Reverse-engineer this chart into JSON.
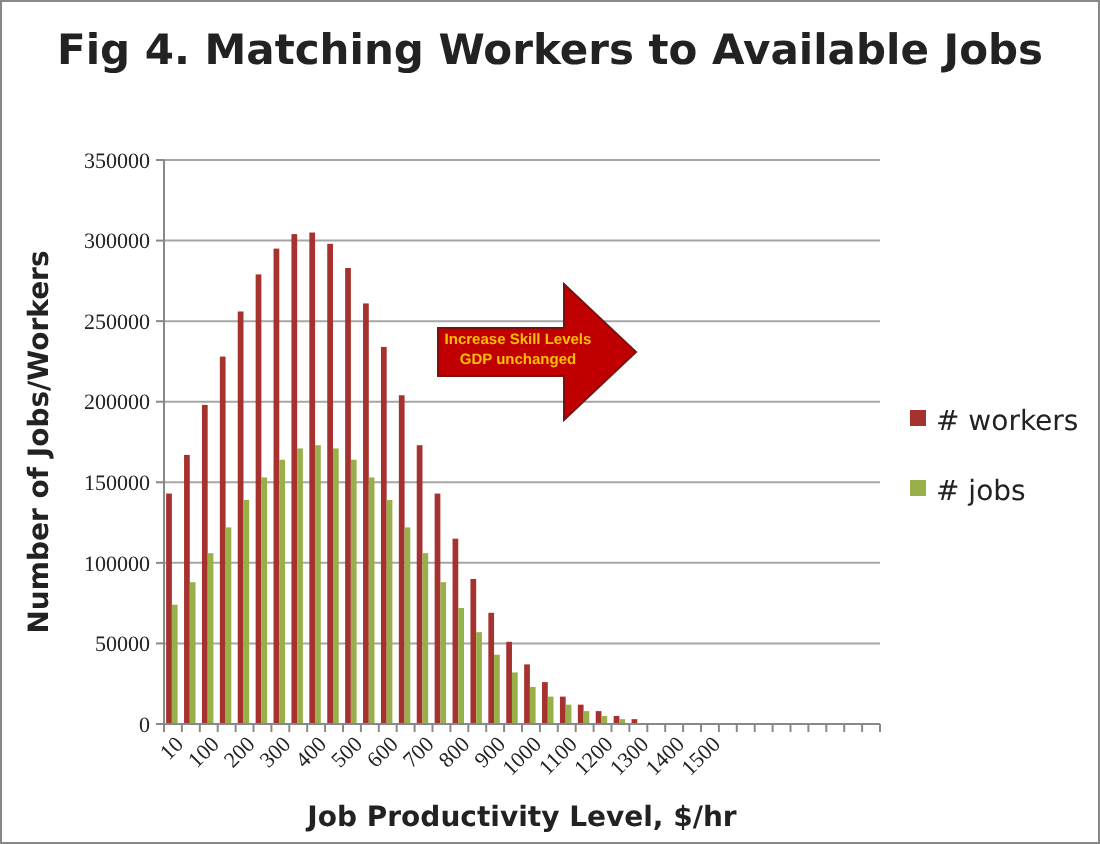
{
  "chart_data": {
    "type": "bar",
    "title": "Fig 4.  Matching Workers to Available Jobs",
    "xlabel": "Job Productivity Level, $/hr",
    "ylabel": "Number of Jobs/Workers",
    "categories": [
      "10",
      null,
      "100",
      null,
      "200",
      null,
      "300",
      null,
      "400",
      null,
      "500",
      null,
      "600",
      null,
      "700",
      null,
      "800",
      null,
      "900",
      null,
      "1000",
      null,
      "1100",
      null,
      "1200",
      null,
      "1300",
      null,
      "1400",
      null,
      "1500",
      null,
      null,
      null,
      null,
      null,
      null,
      null,
      null,
      null
    ],
    "series": [
      {
        "name": "# workers",
        "color": "#a5322f",
        "values": [
          143000,
          167000,
          198000,
          228000,
          256000,
          279000,
          295000,
          304000,
          305000,
          298000,
          283000,
          261000,
          234000,
          204000,
          173000,
          143000,
          115000,
          90000,
          69000,
          51000,
          37000,
          26000,
          17000,
          12000,
          8000,
          5000,
          3000,
          0,
          0,
          0,
          0,
          0,
          0,
          0,
          0,
          0,
          0,
          0,
          0,
          0
        ]
      },
      {
        "name": "# jobs",
        "color": "#98b04a",
        "values": [
          74000,
          88000,
          106000,
          122000,
          139000,
          153000,
          164000,
          171000,
          173000,
          171000,
          164000,
          153000,
          139000,
          122000,
          106000,
          88000,
          72000,
          57000,
          43000,
          32000,
          23000,
          17000,
          12000,
          8000,
          5000,
          3000,
          0,
          0,
          0,
          0,
          0,
          0,
          0,
          0,
          0,
          0,
          0,
          0,
          0,
          0
        ]
      }
    ],
    "ylim": [
      0,
      350000
    ],
    "yticks": [
      0,
      50000,
      100000,
      150000,
      200000,
      250000,
      300000,
      350000
    ],
    "grid": "y",
    "legend": "right",
    "annotations": [
      "Increase Skill Levels",
      "GDP unchanged"
    ]
  }
}
